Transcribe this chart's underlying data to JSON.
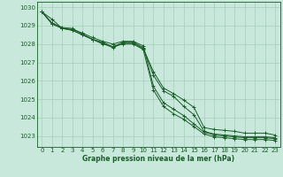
{
  "bg_color": "#c8e8dc",
  "grid_color": "#a8ccbc",
  "line_color": "#1a5e28",
  "xlabel": "Graphe pression niveau de la mer (hPa)",
  "xlim": [
    -0.5,
    23.5
  ],
  "ylim": [
    1022.4,
    1030.3
  ],
  "yticks": [
    1023,
    1024,
    1025,
    1026,
    1027,
    1028,
    1029,
    1030
  ],
  "xticks": [
    0,
    1,
    2,
    3,
    4,
    5,
    6,
    7,
    8,
    9,
    10,
    11,
    12,
    13,
    14,
    15,
    16,
    17,
    18,
    19,
    20,
    21,
    22,
    23
  ],
  "series": [
    [
      1029.75,
      1029.15,
      1028.9,
      1028.85,
      1028.55,
      1028.25,
      1028.05,
      1027.8,
      1028.05,
      1028.05,
      1027.75,
      1026.5,
      1025.6,
      1025.3,
      1024.95,
      1024.55,
      1023.45,
      1023.35,
      1023.3,
      1023.25,
      1023.15,
      1023.15,
      1023.15,
      1023.05
    ],
    [
      1029.75,
      1029.35,
      1028.85,
      1028.75,
      1028.5,
      1028.25,
      1028.1,
      1027.85,
      1028.1,
      1028.1,
      1027.8,
      1026.3,
      1025.45,
      1025.15,
      1024.6,
      1024.15,
      1023.25,
      1023.1,
      1023.05,
      1023.0,
      1022.95,
      1022.95,
      1022.95,
      1022.9
    ],
    [
      1029.75,
      1029.1,
      1028.85,
      1028.75,
      1028.5,
      1028.25,
      1028.0,
      1027.85,
      1028.0,
      1028.0,
      1027.7,
      1025.5,
      1024.6,
      1024.2,
      1023.9,
      1023.5,
      1023.1,
      1022.95,
      1022.9,
      1022.85,
      1022.8,
      1022.8,
      1022.8,
      1022.75
    ],
    [
      1029.75,
      1029.1,
      1028.85,
      1028.8,
      1028.6,
      1028.35,
      1028.15,
      1028.0,
      1028.15,
      1028.15,
      1027.9,
      1025.7,
      1024.8,
      1024.45,
      1024.1,
      1023.65,
      1023.2,
      1023.05,
      1023.0,
      1022.95,
      1022.9,
      1022.9,
      1022.9,
      1022.85
    ]
  ]
}
